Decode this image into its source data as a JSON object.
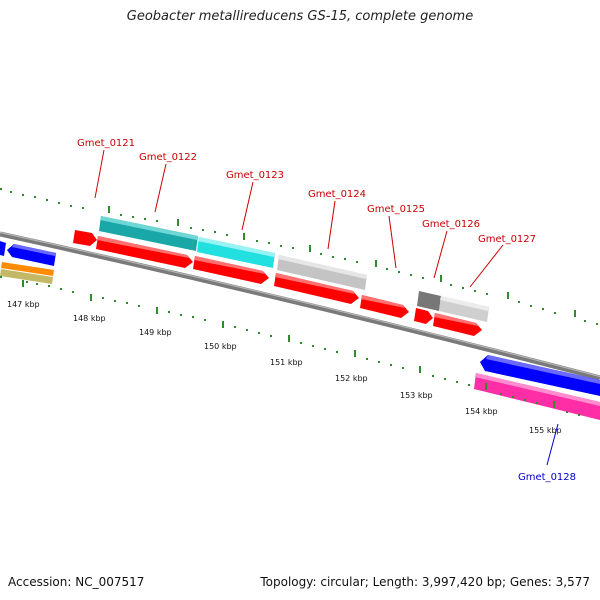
{
  "title": "Geobacter metallireducens GS-15, complete genome",
  "footer": {
    "accession": "Accession: NC_007517",
    "summary": "Topology: circular; Length: 3,997,420 bp; Genes: 3,577"
  },
  "colors": {
    "backbone": "#7a7a7a",
    "tick": "#2e8b2e",
    "forward_gene": "#ff0000",
    "reverse_gene": "#0000ff",
    "label_forward": "#cc0000",
    "label_reverse": "#0000cc",
    "cyan": "#22e0e0",
    "teal": "#1aa7a7",
    "gray": "#c4c4c4",
    "dark_gray": "#777777",
    "magenta": "#ff2da6",
    "orange": "#ff8c00",
    "khaki": "#c2b866"
  },
  "ticks": [
    {
      "label": "147 kbp"
    },
    {
      "label": "148 kbp"
    },
    {
      "label": "149 kbp"
    },
    {
      "label": "150 kbp"
    },
    {
      "label": "151 kbp"
    },
    {
      "label": "152 kbp"
    },
    {
      "label": "153 kbp"
    },
    {
      "label": "154 kbp"
    },
    {
      "label": "155 kbp"
    }
  ],
  "gene_labels": [
    {
      "text": "Gmet_0121",
      "strand": "forward"
    },
    {
      "text": "Gmet_0122",
      "strand": "forward"
    },
    {
      "text": "Gmet_0123",
      "strand": "forward"
    },
    {
      "text": "Gmet_0124",
      "strand": "forward"
    },
    {
      "text": "Gmet_0125",
      "strand": "forward"
    },
    {
      "text": "Gmet_0126",
      "strand": "forward"
    },
    {
      "text": "Gmet_0127",
      "strand": "forward"
    },
    {
      "text": "Gmet_0128",
      "strand": "reverse"
    }
  ]
}
